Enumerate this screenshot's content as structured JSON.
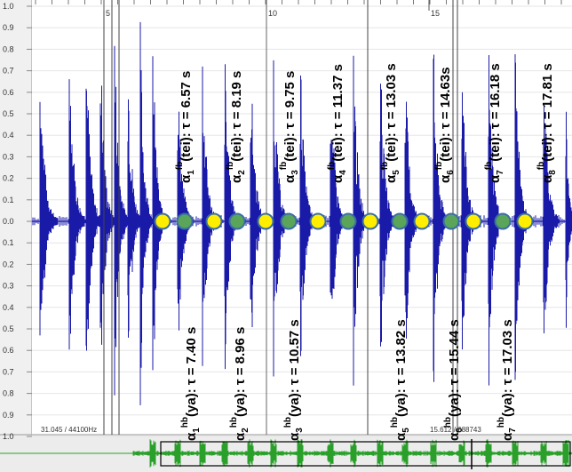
{
  "y_axis_labels": [
    "1.0",
    "0.9",
    "0.8",
    "0.7",
    "0.6",
    "0.5",
    "0.4",
    "0.3",
    "0.2",
    "0.1",
    "0.0",
    "0.1",
    "0.2",
    "0.3",
    "0.4",
    "0.5",
    "0.6",
    "0.7",
    "0.8",
    "0.9",
    "1.0"
  ],
  "time_ticks": [
    "5",
    "10",
    "15"
  ],
  "status": {
    "left": "31.045 / 44100Hz",
    "right": "15.612 / 688743"
  },
  "colors": {
    "waveform": "#1a1aa8",
    "overview": "#2aa02a",
    "marker_fb": "#ffee00",
    "marker_hb": "#5aa55a",
    "marker_outline": "#3a6ea5"
  },
  "annotations_top": [
    {
      "base": "α",
      "index": "1",
      "sup": "fb",
      "rest": "(tei): τ = 6.57 s"
    },
    {
      "base": "α",
      "index": "2",
      "sup": "fb",
      "rest": "(tei): τ = 8.19 s"
    },
    {
      "base": "α",
      "index": "3",
      "sup": "fb",
      "rest": "(tei): τ = 9.75 s"
    },
    {
      "base": "α",
      "index": "4",
      "sup": "fb",
      "rest": "(tei): τ = 11.37 s"
    },
    {
      "base": "α",
      "index": "5",
      "sup": "fb",
      "rest": "(tei): τ = 13.03 s"
    },
    {
      "base": "α",
      "index": "6",
      "sup": "fb",
      "rest": "(tei): τ = 14.63s"
    },
    {
      "base": "α",
      "index": "7",
      "sup": "fb",
      "rest": "(tei): τ = 16.18 s"
    },
    {
      "base": "α",
      "index": "8",
      "sup": "fb",
      "rest": "(tei): τ = 17.81 s"
    }
  ],
  "annotations_bottom": [
    {
      "base": "α",
      "index": "1",
      "sup": "hb",
      "rest": "(ya): τ = 7.40 s"
    },
    {
      "base": "α",
      "index": "2",
      "sup": "hb",
      "rest": "(ya): τ = 8.96 s"
    },
    {
      "base": "α",
      "index": "3",
      "sup": "hb",
      "rest": "(ya): τ = 10.57 s"
    },
    {
      "base": "α",
      "index": "5",
      "sup": "hb",
      "rest": "(ya): τ = 13.82 s"
    },
    {
      "base": "α",
      "index": "6",
      "sup": "hb",
      "rest": "(ya): τ = 15.44 s"
    },
    {
      "base": "α",
      "index": "7",
      "sup": "hb",
      "rest": "(ya): τ = 17.03 s"
    }
  ],
  "markers_fb_count": 8,
  "markers_hb_count": 7
}
